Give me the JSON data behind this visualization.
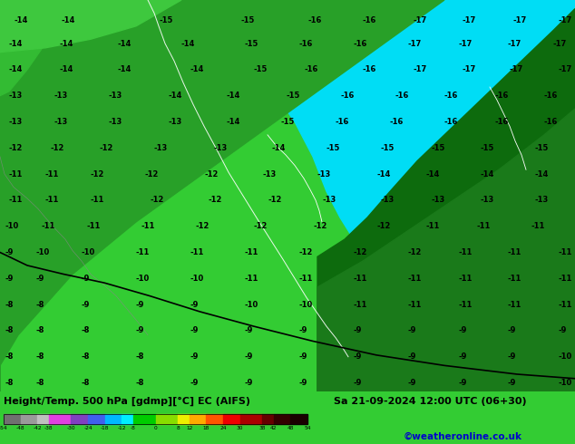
{
  "title_left": "Height/Temp. 500 hPa [gdmp][°C] EC (AIFS)",
  "title_right": "Sa 21-09-2024 12:00 UTC (06+30)",
  "credit": "©weatheronline.co.uk",
  "colorbar_levels": [
    -54,
    -48,
    -42,
    -38,
    -30,
    -24,
    -18,
    -12,
    -8,
    0,
    8,
    12,
    18,
    24,
    30,
    38,
    42,
    48,
    54
  ],
  "colorbar_colors": [
    "#707070",
    "#9a9a9a",
    "#c0c0c0",
    "#e040e0",
    "#8040c0",
    "#4060ee",
    "#00b8ff",
    "#00eeff",
    "#00cc00",
    "#88dd00",
    "#eeee00",
    "#ffaa00",
    "#ff5500",
    "#ee0000",
    "#aa0000",
    "#660000",
    "#330000",
    "#1a0000"
  ],
  "bg_dark_green": "#0a5c0a",
  "bg_mid_green": "#1a7a1a",
  "bg_light_green": "#33aa33",
  "bg_bright_green": "#44cc44",
  "bg_cyan": "#00ddf5",
  "bottom_bar_color": "#33cc33",
  "label_color": "#000000",
  "credit_color": "#0000cc",
  "labels": [
    [
      15,
      8,
      "-14",
      0
    ],
    [
      68,
      8,
      "-14",
      0
    ],
    [
      175,
      8,
      "-15",
      0
    ],
    [
      265,
      8,
      "-15",
      0
    ],
    [
      340,
      8,
      "-16",
      0
    ],
    [
      400,
      8,
      "-16",
      0
    ],
    [
      455,
      8,
      "-17",
      0
    ],
    [
      510,
      8,
      "-17",
      0
    ],
    [
      565,
      8,
      "-17",
      0
    ],
    [
      615,
      8,
      "-17",
      0
    ],
    [
      10,
      35,
      "-14",
      0
    ],
    [
      65,
      35,
      "-14",
      0
    ],
    [
      130,
      35,
      "-14",
      0
    ],
    [
      200,
      35,
      "-14",
      0
    ],
    [
      270,
      35,
      "-15",
      0
    ],
    [
      330,
      35,
      "-16",
      0
    ],
    [
      390,
      35,
      "-16",
      0
    ],
    [
      450,
      35,
      "-17",
      0
    ],
    [
      505,
      35,
      "-17",
      0
    ],
    [
      560,
      35,
      "-17",
      0
    ],
    [
      610,
      35,
      "-17",
      0
    ],
    [
      10,
      65,
      "-14",
      0
    ],
    [
      65,
      65,
      "-14",
      0
    ],
    [
      130,
      65,
      "-14",
      0
    ],
    [
      210,
      65,
      "-14",
      0
    ],
    [
      280,
      65,
      "-15",
      0
    ],
    [
      335,
      65,
      "-16",
      0
    ],
    [
      400,
      65,
      "-16",
      0
    ],
    [
      455,
      65,
      "-17",
      0
    ],
    [
      510,
      65,
      "-17",
      0
    ],
    [
      562,
      65,
      "-17",
      0
    ],
    [
      615,
      65,
      "-17",
      0
    ],
    [
      10,
      95,
      "-13",
      0
    ],
    [
      60,
      95,
      "-13",
      0
    ],
    [
      120,
      95,
      "-13",
      0
    ],
    [
      185,
      95,
      "-14",
      0
    ],
    [
      250,
      95,
      "-14",
      0
    ],
    [
      315,
      95,
      "-15",
      0
    ],
    [
      375,
      95,
      "-16",
      0
    ],
    [
      435,
      95,
      "-16",
      0
    ],
    [
      490,
      95,
      "-16",
      0
    ],
    [
      545,
      95,
      "-16",
      0
    ],
    [
      600,
      95,
      "-16",
      0
    ],
    [
      10,
      125,
      "-13",
      0
    ],
    [
      60,
      125,
      "-13",
      0
    ],
    [
      120,
      125,
      "-13",
      0
    ],
    [
      185,
      125,
      "-13",
      0
    ],
    [
      250,
      125,
      "-14",
      0
    ],
    [
      310,
      125,
      "-15",
      0
    ],
    [
      370,
      125,
      "-16",
      0
    ],
    [
      430,
      125,
      "-16",
      0
    ],
    [
      490,
      125,
      "-16",
      0
    ],
    [
      545,
      125,
      "-16",
      0
    ],
    [
      600,
      125,
      "-16",
      0
    ],
    [
      10,
      155,
      "-12",
      0
    ],
    [
      55,
      155,
      "-12",
      0
    ],
    [
      110,
      155,
      "-12",
      0
    ],
    [
      170,
      155,
      "-13",
      0
    ],
    [
      235,
      155,
      "-13",
      0
    ],
    [
      300,
      155,
      "-14",
      0
    ],
    [
      360,
      155,
      "-15",
      0
    ],
    [
      420,
      155,
      "-15",
      0
    ],
    [
      475,
      155,
      "-15",
      0
    ],
    [
      530,
      155,
      "-15",
      0
    ],
    [
      590,
      155,
      "-15",
      0
    ],
    [
      10,
      185,
      "-11",
      0
    ],
    [
      50,
      185,
      "-11",
      0
    ],
    [
      100,
      185,
      "-12",
      0
    ],
    [
      160,
      185,
      "-12",
      0
    ],
    [
      225,
      185,
      "-12",
      0
    ],
    [
      290,
      185,
      "-13",
      0
    ],
    [
      350,
      185,
      "-13",
      0
    ],
    [
      415,
      185,
      "-14",
      0
    ],
    [
      470,
      185,
      "-14",
      0
    ],
    [
      530,
      185,
      "-14",
      0
    ],
    [
      590,
      185,
      "-14",
      0
    ],
    [
      10,
      215,
      "-11",
      0
    ],
    [
      50,
      215,
      "-11",
      0
    ],
    [
      100,
      215,
      "-11",
      0
    ],
    [
      165,
      215,
      "-12",
      0
    ],
    [
      230,
      215,
      "-12",
      0
    ],
    [
      295,
      215,
      "-12",
      0
    ],
    [
      355,
      215,
      "-13",
      0
    ],
    [
      420,
      215,
      "-13",
      0
    ],
    [
      475,
      215,
      "-13",
      0
    ],
    [
      530,
      215,
      "-13",
      0
    ],
    [
      590,
      215,
      "-13",
      0
    ],
    [
      5,
      245,
      "-10",
      0
    ],
    [
      45,
      245,
      "-11",
      0
    ],
    [
      95,
      245,
      "-11",
      0
    ],
    [
      155,
      245,
      "-11",
      0
    ],
    [
      215,
      245,
      "-12",
      0
    ],
    [
      280,
      245,
      "-12",
      0
    ],
    [
      345,
      245,
      "-12",
      0
    ],
    [
      415,
      245,
      "-12",
      0
    ],
    [
      470,
      245,
      "-11",
      0
    ],
    [
      525,
      245,
      "-11",
      0
    ],
    [
      585,
      245,
      "-11",
      0
    ],
    [
      5,
      275,
      "-9",
      0
    ],
    [
      40,
      275,
      "-10",
      0
    ],
    [
      90,
      275,
      "-10",
      0
    ],
    [
      150,
      275,
      "-11",
      0
    ],
    [
      210,
      275,
      "-11",
      0
    ],
    [
      270,
      275,
      "-11",
      0
    ],
    [
      330,
      275,
      "-12",
      0
    ],
    [
      390,
      275,
      "-12",
      0
    ],
    [
      450,
      275,
      "-12",
      0
    ],
    [
      505,
      275,
      "-11",
      0
    ],
    [
      560,
      275,
      "-11",
      0
    ],
    [
      615,
      275,
      "-11",
      0
    ],
    [
      5,
      305,
      "-9",
      0
    ],
    [
      40,
      305,
      "-9",
      0
    ],
    [
      90,
      305,
      "-9",
      0
    ],
    [
      150,
      305,
      "-10",
      0
    ],
    [
      210,
      305,
      "-10",
      0
    ],
    [
      270,
      305,
      "-11",
      0
    ],
    [
      330,
      305,
      "-11",
      0
    ],
    [
      390,
      305,
      "-11",
      0
    ],
    [
      450,
      305,
      "-11",
      0
    ],
    [
      505,
      305,
      "-11",
      0
    ],
    [
      560,
      305,
      "-11",
      0
    ],
    [
      615,
      305,
      "-11",
      0
    ],
    [
      5,
      335,
      "-8",
      0
    ],
    [
      40,
      335,
      "-8",
      0
    ],
    [
      90,
      335,
      "-9",
      0
    ],
    [
      150,
      335,
      "-9",
      0
    ],
    [
      210,
      335,
      "-9",
      0
    ],
    [
      270,
      335,
      "-10",
      0
    ],
    [
      330,
      335,
      "-10",
      0
    ],
    [
      390,
      335,
      "-11",
      0
    ],
    [
      450,
      335,
      "-11",
      0
    ],
    [
      505,
      335,
      "-11",
      0
    ],
    [
      560,
      335,
      "-11",
      0
    ],
    [
      615,
      335,
      "-11",
      0
    ],
    [
      5,
      365,
      "-8",
      0
    ],
    [
      40,
      365,
      "-8",
      0
    ],
    [
      90,
      365,
      "-8",
      0
    ],
    [
      150,
      365,
      "-9",
      0
    ],
    [
      210,
      365,
      "-9",
      0
    ],
    [
      270,
      365,
      "-9",
      0
    ],
    [
      330,
      365,
      "-9",
      0
    ],
    [
      390,
      365,
      "-9",
      0
    ],
    [
      450,
      365,
      "-9",
      0
    ],
    [
      505,
      365,
      "-9",
      0
    ],
    [
      560,
      365,
      "-9",
      0
    ],
    [
      615,
      365,
      "-9",
      0
    ],
    [
      5,
      395,
      "-8",
      0
    ],
    [
      40,
      395,
      "-8",
      0
    ],
    [
      90,
      395,
      "-8",
      0
    ],
    [
      150,
      395,
      "-8",
      0
    ],
    [
      210,
      395,
      "-9",
      0
    ],
    [
      270,
      395,
      "-9",
      0
    ],
    [
      330,
      395,
      "-9",
      0
    ],
    [
      390,
      395,
      "-9",
      0
    ],
    [
      450,
      395,
      "-9",
      0
    ],
    [
      505,
      395,
      "-9",
      0
    ],
    [
      560,
      395,
      "-9",
      0
    ],
    [
      615,
      395,
      "-10",
      0
    ],
    [
      5,
      425,
      "-8",
      0
    ],
    [
      40,
      425,
      "-8",
      0
    ],
    [
      90,
      425,
      "-8",
      0
    ],
    [
      150,
      425,
      "-8",
      0
    ],
    [
      210,
      425,
      "-9",
      0
    ],
    [
      270,
      425,
      "-9",
      0
    ],
    [
      330,
      425,
      "-9",
      0
    ],
    [
      390,
      425,
      "-9",
      0
    ],
    [
      450,
      425,
      "-9",
      0
    ],
    [
      505,
      425,
      "-9",
      0
    ],
    [
      560,
      425,
      "-9",
      0
    ],
    [
      615,
      425,
      "-10",
      0
    ]
  ]
}
